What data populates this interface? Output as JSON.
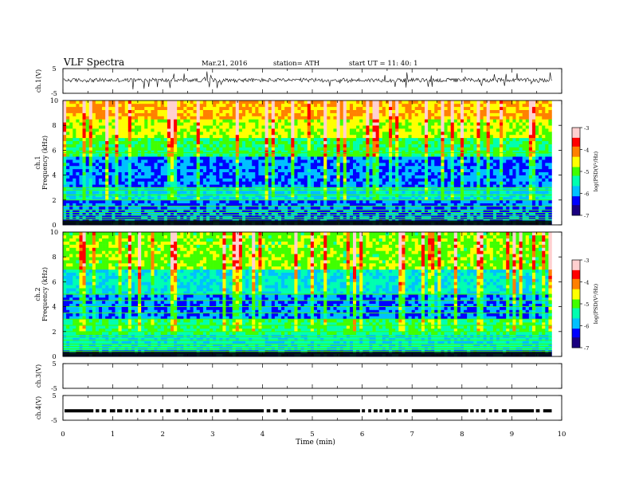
{
  "header": {
    "title": "VLF  Spectra",
    "date": "Mar.21, 2016",
    "station": "station= ATH",
    "start": "start  UT  =   11: 40: 1"
  },
  "chart_data": {
    "type": "heatmap",
    "time_axis": {
      "label": "Time  (min)",
      "range": [
        0,
        10
      ],
      "ticks": [
        "0",
        "1",
        "2",
        "3",
        "4",
        "5",
        "6",
        "7",
        "8",
        "9",
        "10"
      ],
      "data_end_min": 9.8
    },
    "panels": [
      {
        "kind": "waveform",
        "ylabel": "ch.1(V)",
        "ylim": [
          -5,
          5
        ],
        "yticks": [
          "5",
          "-5"
        ],
        "baseline_v": 0.3
      },
      {
        "kind": "spectrogram",
        "ylabel_top": "ch.1",
        "ylabel": "Frequency  (kHz)",
        "ylim": [
          0,
          10
        ],
        "yticks": [
          "0",
          "2",
          "4",
          "6",
          "8",
          "10"
        ],
        "colorbar": {
          "label": "log(PSD(V²/Hz)",
          "range": [
            -7,
            -3
          ],
          "ticks": [
            "-3",
            "-4",
            "-5",
            "-6",
            "-7"
          ]
        },
        "bands": [
          {
            "f": [
              0,
              0.6
            ],
            "level": -6.3
          },
          {
            "f": [
              0.6,
              2.0
            ],
            "level": -6.1
          },
          {
            "f": [
              2.0,
              3.0
            ],
            "level": -5.7
          },
          {
            "f": [
              3.0,
              5.5
            ],
            "level": -6.1
          },
          {
            "f": [
              5.5,
              7.0
            ],
            "level": -5.2
          },
          {
            "f": [
              7.0,
              8.5
            ],
            "level": -4.7
          },
          {
            "f": [
              8.5,
              10
            ],
            "level": -4.3
          }
        ],
        "lines_khz": [
          0.15,
          0.3,
          0.45,
          0.6,
          0.8,
          1.0,
          1.2,
          1.5,
          2.0,
          2.4,
          2.8,
          3.0,
          5.8
        ],
        "line_level": -4.8
      },
      {
        "kind": "spectrogram",
        "ylabel_top": "ch.2",
        "ylabel": "Frequency  (kHz)",
        "ylim": [
          0,
          10
        ],
        "yticks": [
          "0",
          "2",
          "4",
          "6",
          "8",
          "10"
        ],
        "colorbar": {
          "label": "log(PSD(V²/Hz)",
          "range": [
            -7,
            -3
          ],
          "ticks": [
            "-3",
            "-4",
            "-5",
            "-6",
            "-7"
          ]
        },
        "bands": [
          {
            "f": [
              0,
              0.6
            ],
            "level": -6.3
          },
          {
            "f": [
              0.6,
              1.8
            ],
            "level": -5.6
          },
          {
            "f": [
              1.8,
              3.0
            ],
            "level": -5.3
          },
          {
            "f": [
              3.0,
              5.0
            ],
            "level": -6.1
          },
          {
            "f": [
              5.0,
              7.0
            ],
            "level": -5.6
          },
          {
            "f": [
              7.0,
              10
            ],
            "level": -4.9
          }
        ],
        "lines_khz": [
          0.2,
          0.4,
          0.6,
          0.8,
          1.0,
          1.3,
          1.6,
          2.0,
          2.5,
          3.0,
          3.5,
          4.0,
          4.5,
          5.0
        ],
        "line_level": -4.9
      },
      {
        "kind": "empty",
        "ylabel": "ch.3(V)",
        "ylim": [
          -5,
          5
        ],
        "yticks": [
          "5",
          "-5"
        ]
      },
      {
        "kind": "pulses",
        "ylabel": "ch.4(V)",
        "ylim": [
          -5,
          5
        ],
        "yticks": [
          "5",
          "-5"
        ],
        "level_v": -1.2
      }
    ]
  },
  "colors": {
    "scale": [
      "#1a0080",
      "#0000ff",
      "#00c0ff",
      "#00ffb0",
      "#40ff00",
      "#ffff00",
      "#ff8000",
      "#ff0000",
      "#ffd0d0"
    ],
    "axis": "#000000"
  }
}
